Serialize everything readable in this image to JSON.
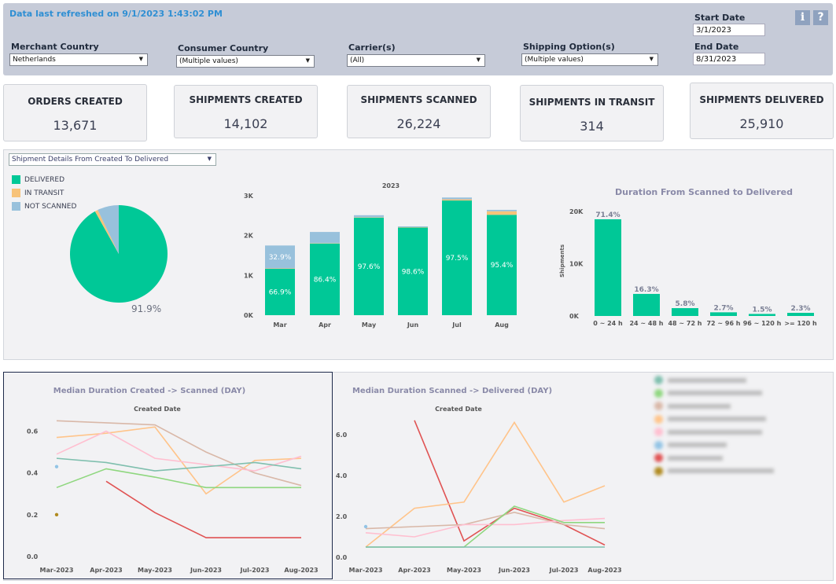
{
  "header": {
    "refresh_text": "Data last refreshed on 9/1/2023 1:43:02 PM",
    "filters": [
      {
        "label": "Merchant Country",
        "value": "Netherlands"
      },
      {
        "label": "Consumer Country",
        "value": "(Multiple values)"
      },
      {
        "label": "Carrier(s)",
        "value": "(All)"
      },
      {
        "label": "Shipping Option(s)",
        "value": "(Multiple values)"
      }
    ],
    "start_date_label": "Start Date",
    "start_date": "3/1/2023",
    "end_date_label": "End Date",
    "end_date": "8/31/2023",
    "info_icon": "info-icon",
    "help_icon": "question-icon",
    "info_glyph": "i",
    "help_glyph": "?"
  },
  "kpis": [
    {
      "title": "ORDERS CREATED",
      "value": "13,671"
    },
    {
      "title": "SHIPMENTS CREATED",
      "value": "14,102"
    },
    {
      "title": "SHIPMENTS SCANNED",
      "value": "26,224"
    },
    {
      "title": "SHIPMENTS IN TRANSIT",
      "value": "314"
    },
    {
      "title": "SHIPMENTS DELIVERED",
      "value": "25,910"
    }
  ],
  "details": {
    "dropdown": "Shipment Details From Created To Delivered",
    "legend": [
      {
        "label": "DELIVERED",
        "color": "#00c897"
      },
      {
        "label": "IN TRANSIT",
        "color": "#f7c37a"
      },
      {
        "label": "NOT SCANNED",
        "color": "#98c1dc"
      }
    ]
  },
  "chart_data": [
    {
      "type": "pie",
      "labels": [
        "DELIVERED",
        "IN TRANSIT",
        "NOT SCANNED"
      ],
      "values": [
        91.9,
        1.0,
        7.1
      ],
      "colors": [
        "#00c897",
        "#f7c37a",
        "#98c1dc"
      ],
      "data_label": "91.9%"
    },
    {
      "type": "bar",
      "title": "2023",
      "categories": [
        "Mar",
        "Apr",
        "May",
        "Jun",
        "Jul",
        "Aug"
      ],
      "series": [
        {
          "name": "DELIVERED",
          "values": [
            1165,
            1800,
            2450,
            2200,
            2880,
            2520
          ],
          "labels": [
            "66.9%",
            "86.4%",
            "97.6%",
            "98.6%",
            "97.5%",
            "95.4%"
          ],
          "color": "#00c897"
        },
        {
          "name": "IN TRANSIT",
          "values": [
            10,
            10,
            10,
            10,
            30,
            90
          ],
          "color": "#f7c37a"
        },
        {
          "name": "NOT SCANNED",
          "values": [
            575,
            280,
            50,
            20,
            45,
            35
          ],
          "labels": [
            "32.9%"
          ],
          "color": "#98c1dc"
        }
      ],
      "yticks": [
        "0K",
        "1K",
        "2K",
        "3K"
      ],
      "ylim": [
        0,
        3000
      ]
    },
    {
      "type": "bar",
      "title": "Duration From Scanned to Delivered",
      "ylabel": "Shipments",
      "categories": [
        "0 ~ 24 h",
        "24 ~ 48 h",
        "48 ~ 72 h",
        "72 ~ 96 h",
        "96 ~ 120 h",
        ">= 120 h"
      ],
      "values": [
        18500,
        4220,
        1500,
        700,
        390,
        600
      ],
      "labels": [
        "71.4%",
        "16.3%",
        "5.8%",
        "2.7%",
        "1.5%",
        "2.3%"
      ],
      "yticks": [
        "0K",
        "10K",
        "20K"
      ],
      "ylim": [
        0,
        20000
      ],
      "color": "#00c897"
    },
    {
      "type": "line",
      "title": "Median Duration Created -> Scanned (DAY)",
      "subtitle": "Created Date",
      "categories": [
        "Mar-2023",
        "Apr-2023",
        "May-2023",
        "Jun-2023",
        "Jul-2023",
        "Aug-2023"
      ],
      "yticks": [
        "0.0",
        "0.2",
        "0.4",
        "0.6"
      ],
      "ylim": [
        0,
        0.7
      ],
      "series": [
        {
          "color": "#d9b8a8",
          "values": [
            0.65,
            0.64,
            0.63,
            0.5,
            0.4,
            0.34
          ]
        },
        {
          "color": "#ffc48a",
          "values": [
            0.57,
            0.59,
            0.62,
            0.3,
            0.46,
            0.47
          ]
        },
        {
          "color": "#ffbfd0",
          "values": [
            0.49,
            0.6,
            0.47,
            0.44,
            0.41,
            0.48
          ]
        },
        {
          "color": "#7fbfae",
          "values": [
            0.47,
            0.45,
            0.41,
            0.43,
            0.45,
            0.42
          ]
        },
        {
          "color": "#8fd77f",
          "values": [
            0.33,
            0.42,
            0.38,
            0.33,
            0.33,
            0.33
          ]
        },
        {
          "color": "#e05353",
          "values": [
            null,
            0.36,
            0.21,
            0.09,
            0.09,
            0.09
          ]
        }
      ],
      "points": [
        {
          "color": "#93c4e5",
          "x": "Mar-2023",
          "y": 0.43
        },
        {
          "color": "#b08a1f",
          "x": "Mar-2023",
          "y": 0.2
        }
      ]
    },
    {
      "type": "line",
      "title": "Median Duration Scanned -> Delivered (DAY)",
      "subtitle": "Created Date",
      "categories": [
        "Mar-2023",
        "Apr-2023",
        "May-2023",
        "Jun-2023",
        "Jul-2023",
        "Aug-2023"
      ],
      "yticks": [
        "0.0",
        "2.0",
        "4.0",
        "6.0"
      ],
      "ylim": [
        0,
        7
      ],
      "series": [
        {
          "color": "#e05353",
          "values": [
            null,
            6.7,
            0.8,
            2.4,
            1.6,
            0.6
          ]
        },
        {
          "color": "#ffc48a",
          "values": [
            0.5,
            2.4,
            2.7,
            6.6,
            2.7,
            3.5
          ]
        },
        {
          "color": "#d9b8a8",
          "values": [
            1.4,
            1.5,
            1.6,
            2.2,
            1.6,
            1.4
          ]
        },
        {
          "color": "#ffbfd0",
          "values": [
            1.2,
            1.0,
            1.6,
            1.6,
            1.8,
            1.9
          ]
        },
        {
          "color": "#8fd77f",
          "values": [
            0.5,
            0.5,
            0.5,
            2.5,
            1.7,
            1.7
          ]
        },
        {
          "color": "#7fbfae",
          "values": [
            0.5,
            0.5,
            0.5,
            0.5,
            0.5,
            0.5
          ]
        }
      ],
      "points": [
        {
          "color": "#93c4e5",
          "x": "Mar-2023",
          "y": 1.5
        }
      ]
    }
  ],
  "line_legend": {
    "colors": [
      "#7fbfae",
      "#8fd77f",
      "#d9b8a8",
      "#ffc48a",
      "#ffbfd0",
      "#93c4e5",
      "#e05353",
      "#b08a1f"
    ]
  }
}
